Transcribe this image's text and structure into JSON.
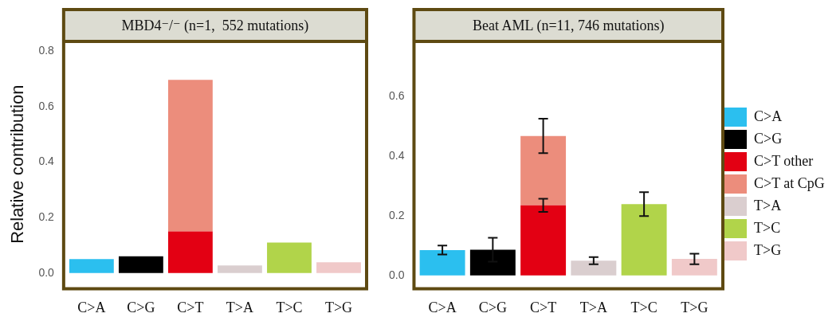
{
  "chart_data": [
    {
      "type": "bar",
      "title": "MBD4⁻/⁻ (n=1,  552 mutations)",
      "ylabel": "Relative contribution",
      "categories": [
        "C>A",
        "C>G",
        "C>T",
        "T>A",
        "T>C",
        "T>G"
      ],
      "stacked": true,
      "legend": false,
      "grid": false,
      "ylim": [
        -0.045,
        0.83
      ],
      "yticks": [
        {
          "value": 0,
          "label": "0.0"
        },
        {
          "value": 0.2,
          "label": "0.2"
        },
        {
          "value": 0.4,
          "label": "0.4"
        },
        {
          "value": 0.6,
          "label": "0.6"
        },
        {
          "value": 0.8,
          "label": "0.8"
        }
      ],
      "series": [
        {
          "color": "#2bbfef",
          "values": [
            0.05,
            null,
            null,
            null,
            null,
            null
          ]
        },
        {
          "color": "#000000",
          "values": [
            null,
            0.06,
            null,
            null,
            null,
            null
          ]
        },
        {
          "color": "#e30013",
          "values": [
            null,
            null,
            0.15,
            null,
            null,
            null
          ]
        },
        {
          "color": "#ec8d7c",
          "values": [
            null,
            null,
            0.547,
            null,
            null,
            null
          ]
        },
        {
          "color": "#dacecf",
          "values": [
            null,
            null,
            null,
            0.027,
            null,
            null
          ]
        },
        {
          "color": "#b1d44a",
          "values": [
            null,
            null,
            null,
            null,
            0.11,
            null
          ]
        },
        {
          "color": "#f0c9c9",
          "values": [
            null,
            null,
            null,
            null,
            null,
            0.039
          ]
        }
      ]
    },
    {
      "type": "bar",
      "title": "Beat AML (n=11, 746 mutations)",
      "categories": [
        "C>A",
        "C>G",
        "C>T",
        "T>A",
        "T>C",
        "T>G"
      ],
      "stacked": true,
      "legend": "right",
      "grid": false,
      "ylim": [
        -0.034,
        0.78
      ],
      "yticks": [
        {
          "value": 0,
          "label": "0.0"
        },
        {
          "value": 0.2,
          "label": "0.2"
        },
        {
          "value": 0.4,
          "label": "0.4"
        },
        {
          "value": 0.6,
          "label": "0.6"
        }
      ],
      "series": [
        {
          "name": "C>A",
          "color": "#2bbfef",
          "values": [
            0.085,
            null,
            null,
            null,
            null,
            null
          ],
          "errors": [
            0.015,
            null,
            null,
            null,
            null,
            null
          ]
        },
        {
          "name": "C>G",
          "color": "#000000",
          "values": [
            null,
            0.086,
            null,
            null,
            null,
            null
          ],
          "errors": [
            null,
            0.04,
            null,
            null,
            null,
            null
          ]
        },
        {
          "name": "C>T other",
          "color": "#e30013",
          "values": [
            null,
            null,
            0.235,
            null,
            null,
            null
          ],
          "errors": [
            null,
            null,
            0.022,
            null,
            null,
            null
          ]
        },
        {
          "name": "C>T at CpG",
          "color": "#ec8d7c",
          "values": [
            null,
            null,
            0.233,
            null,
            null,
            null
          ],
          "errors": [
            null,
            null,
            0.058,
            null,
            null,
            null
          ]
        },
        {
          "name": "T>A",
          "color": "#dacecf",
          "values": [
            null,
            null,
            null,
            0.049,
            null,
            null
          ],
          "errors": [
            null,
            null,
            null,
            0.012,
            null,
            null
          ]
        },
        {
          "name": "T>C",
          "color": "#b1d44a",
          "values": [
            null,
            null,
            null,
            null,
            0.239,
            null
          ],
          "errors": [
            null,
            null,
            null,
            null,
            0.04,
            null
          ]
        },
        {
          "name": "T>G",
          "color": "#f0c9c9",
          "values": [
            null,
            null,
            null,
            null,
            null,
            0.055
          ],
          "errors": [
            null,
            null,
            null,
            null,
            null,
            0.018
          ]
        }
      ]
    }
  ]
}
